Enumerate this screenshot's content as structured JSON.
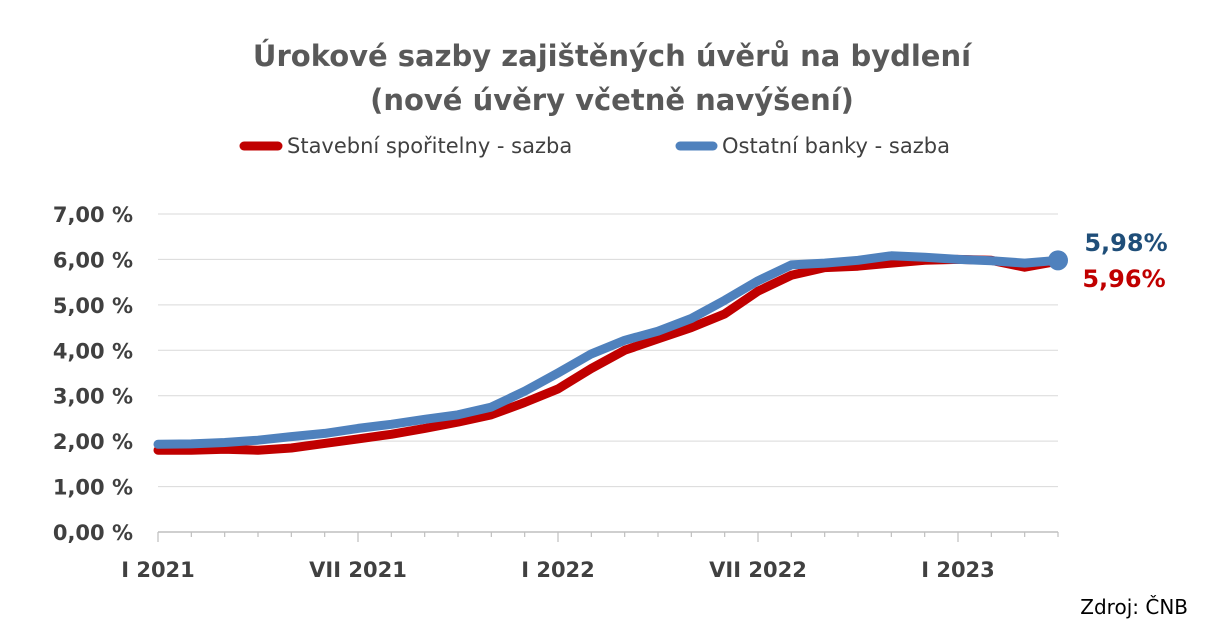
{
  "chart_data": {
    "type": "line",
    "title": "Úrokové sazby zajištěných úvěrů na bydlení",
    "subtitle": "(nové úvěry včetně navýšení)",
    "ylim": [
      0,
      7
    ],
    "yticks": [
      "0,00 %",
      "1,00 %",
      "2,00 %",
      "3,00 %",
      "4,00 %",
      "5,00 %",
      "6,00 %",
      "7,00 %"
    ],
    "x": [
      "I 2021",
      "II 2021",
      "III 2021",
      "IV 2021",
      "V 2021",
      "VI 2021",
      "VII 2021",
      "VIII 2021",
      "IX 2021",
      "X 2021",
      "XI 2021",
      "XII 2021",
      "I 2022",
      "II 2022",
      "III 2022",
      "IV 2022",
      "V 2022",
      "VI 2022",
      "VII 2022",
      "VIII 2022",
      "IX 2022",
      "X 2022",
      "XI 2022",
      "XII 2022",
      "I 2023",
      "II 2023",
      "III 2023",
      "IV 2023"
    ],
    "xtick_labels": [
      "I 2021",
      "VII 2021",
      "I 2022",
      "VII 2022",
      "I 2023"
    ],
    "grid": true,
    "legend_position": "top",
    "series": [
      {
        "name": "Stavební spořitelny - sazba",
        "color": "#C00000",
        "values": [
          1.8,
          1.8,
          1.82,
          1.8,
          1.85,
          1.95,
          2.05,
          2.15,
          2.28,
          2.42,
          2.58,
          2.85,
          3.15,
          3.6,
          4.0,
          4.25,
          4.5,
          4.8,
          5.3,
          5.65,
          5.82,
          5.85,
          5.92,
          5.98,
          6.0,
          5.98,
          5.83,
          5.96
        ]
      },
      {
        "name": "Ostatní banky - sazba",
        "color": "#4F81BD",
        "values": [
          1.93,
          1.94,
          1.97,
          2.02,
          2.1,
          2.17,
          2.28,
          2.37,
          2.48,
          2.58,
          2.75,
          3.1,
          3.5,
          3.92,
          4.22,
          4.42,
          4.7,
          5.1,
          5.53,
          5.88,
          5.92,
          5.98,
          6.08,
          6.05,
          6.0,
          5.97,
          5.92,
          5.98
        ]
      }
    ],
    "end_labels": [
      "5,98%",
      "5,96%"
    ],
    "end_label_colors": [
      "#1F4E79",
      "#C00000"
    ],
    "source": "Zdroj: ČNB"
  }
}
